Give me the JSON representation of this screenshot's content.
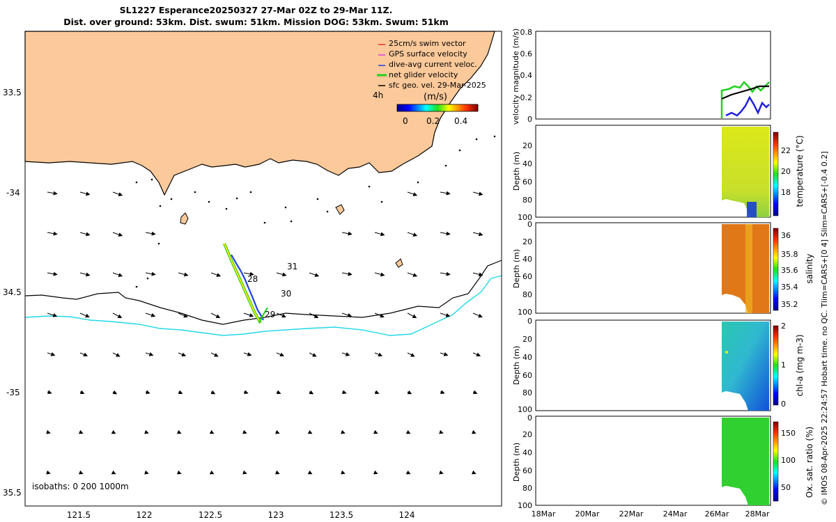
{
  "title": {
    "line1": "SL1227 Esperance20250327 27-Mar 02Z to 29-Mar 11Z.",
    "line2": "Dist. over ground: 53km. Dist. swum: 51km. Mission DOG: 53km. Swum: 51km"
  },
  "map": {
    "lat_ticks": [
      "33.5",
      "-34",
      "34.5",
      "-35",
      "35.5"
    ],
    "lon_ticks": [
      "121.5",
      "122",
      "122.5",
      "123",
      "123.5",
      "124"
    ],
    "legend": [
      {
        "label": "25cm/s swim vector",
        "color": "#e03030"
      },
      {
        "label": "GPS surface velocity",
        "color": "#e040e0"
      },
      {
        "label": "dive-avg current veloc.",
        "color": "#2040e0"
      },
      {
        "label": "net glider velocity",
        "color": "#20d020"
      },
      {
        "label": "sfc geo. vel. 29-Mar-2025",
        "color": "#000000"
      }
    ],
    "legend_extra": "4h",
    "colorbar_title": "(m/s)",
    "colorbar_ticks": [
      "0",
      "0.2",
      "0.4"
    ],
    "track_labels": [
      "28",
      "29"
    ],
    "sst_labels": [
      "31",
      "30"
    ],
    "isobaths": "isobaths: 0   200  1000m",
    "land_color": "#fbc99a",
    "isobath_200_color": "#000000",
    "isobath_1000_color": "#20d8e8"
  },
  "panels": {
    "velocity": {
      "ylabel": "velocity magnitude (m/s)",
      "ticks": [
        "0",
        "0.2",
        "0.4",
        "0.6",
        "0.8"
      ]
    },
    "temperature": {
      "ylabel": "temperature (°C)",
      "colorbar_ticks": [
        "22",
        "20",
        "18"
      ]
    },
    "salinity": {
      "ylabel": "salinity",
      "colorbar_ticks": [
        "36",
        "35.8",
        "35.6",
        "35.4",
        "35.2"
      ]
    },
    "chl": {
      "ylabel": "chl-a (mg m-3)",
      "colorbar_ticks": [
        "2",
        "1",
        "0"
      ]
    },
    "oxygen": {
      "ylabel": "Ox. sat. ratio (%)",
      "colorbar_ticks": [
        "150",
        "100",
        "50"
      ]
    },
    "depth_label": "Depth (m)",
    "depth_ticks": [
      "0",
      "20",
      "40",
      "60",
      "80",
      "100"
    ],
    "date_ticks": [
      "18Mar",
      "20Mar",
      "22Mar",
      "24Mar",
      "26Mar",
      "28Mar"
    ]
  },
  "side_note": "© IMOS 08-Apr-2025 22:24:57 Hobart time. no QC. Tlim=CARS+[0 4] Slim=CARS+[-0.4 0.2]"
}
